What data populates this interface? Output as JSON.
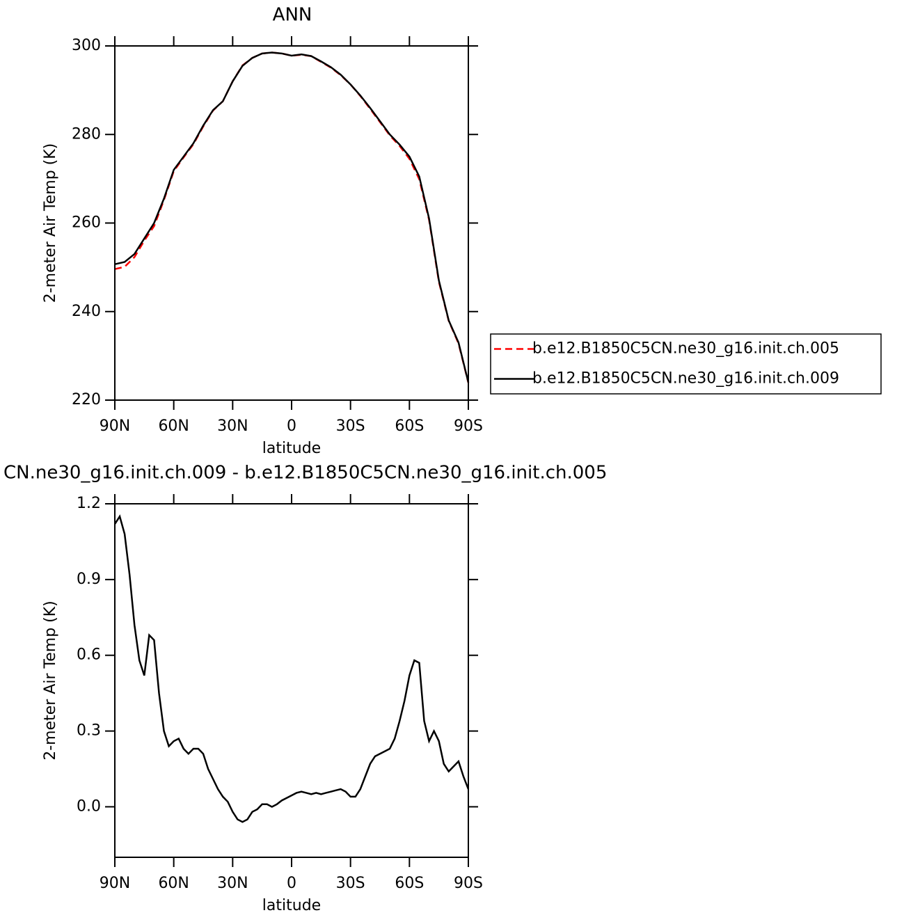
{
  "chart_data": [
    {
      "type": "line",
      "title": "ANN",
      "xlabel": "latitude",
      "ylabel": "2-meter Air Temp (K)",
      "x": [
        90,
        85,
        80,
        75,
        70,
        65,
        60,
        55,
        50,
        45,
        40,
        35,
        30,
        25,
        20,
        15,
        10,
        5,
        0,
        -5,
        -10,
        -15,
        -20,
        -25,
        -30,
        -35,
        -40,
        -45,
        -50,
        -55,
        -60,
        -65,
        -70,
        -75,
        -80,
        -85,
        -90
      ],
      "series": [
        {
          "name": "b.e12.B1850C5CN.ne30_g16.init.ch.005",
          "color": "#ff0000",
          "dash": true,
          "values": [
            249.6,
            250.1,
            252.3,
            256.0,
            259.3,
            265.2,
            271.7,
            274.8,
            277.8,
            281.8,
            285.4,
            287.5,
            292.0,
            295.6,
            297.3,
            298.3,
            298.5,
            298.3,
            297.8,
            298.0,
            297.7,
            296.4,
            295.1,
            293.4,
            291.3,
            288.7,
            285.8,
            282.8,
            279.8,
            277.4,
            274.5,
            269.9,
            260.7,
            246.7,
            237.9,
            232.8,
            223.9
          ]
        },
        {
          "name": "b.e12.B1850C5CN.ne30_g16.init.ch.009",
          "color": "#000000",
          "dash": false,
          "values": [
            250.7,
            251.2,
            253,
            256.5,
            260,
            265.5,
            272,
            275,
            278,
            282,
            285.5,
            287.5,
            292,
            295.5,
            297.3,
            298.3,
            298.5,
            298.3,
            297.8,
            298.1,
            297.7,
            296.5,
            295.2,
            293.5,
            291.3,
            288.8,
            286,
            283,
            280,
            277.7,
            275,
            270.5,
            261,
            247,
            238,
            233,
            224
          ]
        }
      ],
      "xlim": [
        90,
        -90
      ],
      "xticks": [
        {
          "value": 90,
          "label": "90N"
        },
        {
          "value": 60,
          "label": "60N"
        },
        {
          "value": 30,
          "label": "30N"
        },
        0,
        {
          "value": -30,
          "label": "30S"
        },
        {
          "value": -60,
          "label": "60S"
        },
        {
          "value": -90,
          "label": "90S"
        }
      ],
      "ylim": [
        220,
        300
      ],
      "yticks": [
        220,
        240,
        260,
        280,
        300
      ],
      "legend": "right"
    },
    {
      "type": "line",
      "title": "CN.ne30_g16.init.ch.009 - b.e12.B1850C5CN.ne30_g16.init.ch.005",
      "xlabel": "latitude",
      "ylabel": "2-meter Air Temp (K)",
      "x": [
        90,
        87.5,
        85,
        82.5,
        80,
        77.5,
        75,
        72.5,
        70,
        67.5,
        65,
        62.5,
        60,
        57.5,
        55,
        52.5,
        50,
        47.5,
        45,
        42.5,
        40,
        37.5,
        35,
        32.5,
        30,
        27.5,
        25,
        22.5,
        20,
        17.5,
        15,
        12.5,
        10,
        7.5,
        5,
        2.5,
        0,
        -2.5,
        -5,
        -7.5,
        -10,
        -12.5,
        -15,
        -17.5,
        -20,
        -22.5,
        -25,
        -27.5,
        -30,
        -32.5,
        -35,
        -37.5,
        -40,
        -42.5,
        -45,
        -47.5,
        -50,
        -52.5,
        -55,
        -57.5,
        -60,
        -62.5,
        -65,
        -67.5,
        -70,
        -72.5,
        -75,
        -77.5,
        -80,
        -82.5,
        -85,
        -87.5,
        -90
      ],
      "series": [
        {
          "color": "#000000",
          "dash": false,
          "values": [
            1.12,
            1.15,
            1.08,
            0.92,
            0.72,
            0.58,
            0.52,
            0.68,
            0.66,
            0.45,
            0.3,
            0.24,
            0.26,
            0.27,
            0.23,
            0.21,
            0.23,
            0.23,
            0.21,
            0.15,
            0.11,
            0.07,
            0.04,
            0.02,
            -0.02,
            -0.05,
            -0.06,
            -0.05,
            -0.02,
            -0.01,
            0.01,
            0.01,
            0.0,
            0.01,
            0.025,
            0.035,
            0.045,
            0.055,
            0.06,
            0.055,
            0.05,
            0.055,
            0.05,
            0.055,
            0.06,
            0.065,
            0.07,
            0.06,
            0.04,
            0.04,
            0.07,
            0.12,
            0.17,
            0.2,
            0.21,
            0.22,
            0.23,
            0.27,
            0.34,
            0.42,
            0.52,
            0.58,
            0.57,
            0.34,
            0.26,
            0.3,
            0.26,
            0.17,
            0.14,
            0.16,
            0.18,
            0.12,
            0.07
          ]
        }
      ],
      "xlim": [
        90,
        -90
      ],
      "xticks": [
        {
          "value": 90,
          "label": "90N"
        },
        {
          "value": 60,
          "label": "60N"
        },
        {
          "value": 30,
          "label": "30N"
        },
        0,
        {
          "value": -30,
          "label": "30S"
        },
        {
          "value": -60,
          "label": "60S"
        },
        {
          "value": -90,
          "label": "90S"
        }
      ],
      "ylim": [
        -0.2,
        1.2
      ],
      "yticks": [
        {
          "value": 0,
          "label": "0.0"
        },
        0.3,
        0.6,
        0.9,
        1.2
      ]
    }
  ]
}
